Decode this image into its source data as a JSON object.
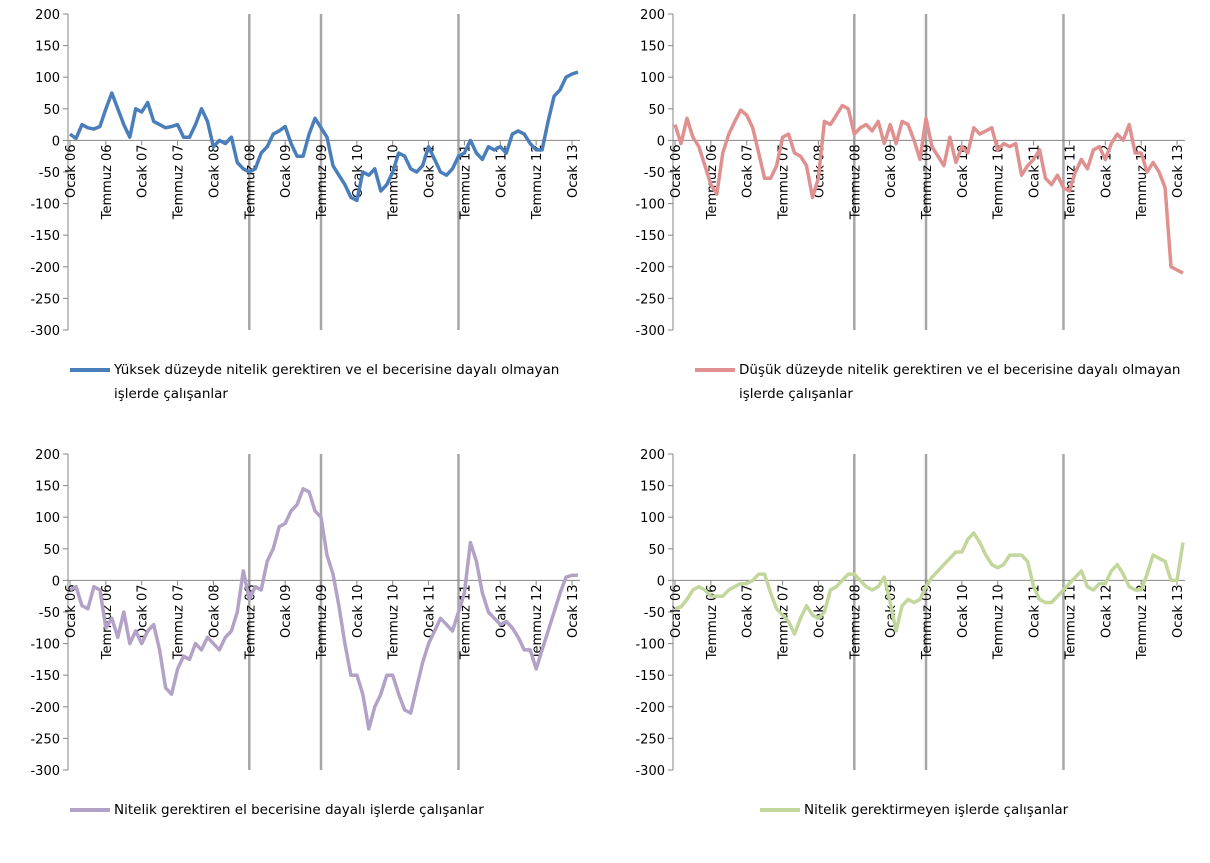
{
  "chart_data": [
    {
      "type": "line",
      "categories": [
        "Ocak 06",
        null,
        null,
        null,
        null,
        null,
        "Temmuz 06",
        null,
        null,
        null,
        null,
        null,
        "Ocak 07",
        null,
        null,
        null,
        null,
        null,
        "Temmuz 07",
        null,
        null,
        null,
        null,
        null,
        "Ocak 08",
        null,
        null,
        null,
        null,
        null,
        "Temmuz 08",
        null,
        null,
        null,
        null,
        null,
        "Ocak 09",
        null,
        null,
        null,
        null,
        null,
        "Temmuz 09",
        null,
        null,
        null,
        null,
        null,
        "Ocak 10",
        null,
        null,
        null,
        null,
        null,
        "Temmuz 10",
        null,
        null,
        null,
        null,
        null,
        "Ocak 11",
        null,
        null,
        null,
        null,
        null,
        "Temmuz 11",
        null,
        null,
        null,
        null,
        null,
        "Ocak 12",
        null,
        null,
        null,
        null,
        null,
        "Temmuz 12",
        null,
        null,
        null,
        null,
        null,
        "Ocak 13",
        null
      ],
      "series": [
        {
          "name": "Yüksek düzeyde nitelik gerektiren ve el becerisine dayalı olmayan işlerde çalışanlar",
          "color": "#4a7ebb",
          "values": [
            10,
            3,
            25,
            20,
            18,
            22,
            50,
            75,
            50,
            25,
            5,
            50,
            45,
            60,
            30,
            25,
            20,
            22,
            25,
            5,
            5,
            25,
            50,
            30,
            -10,
            0,
            -5,
            5,
            -35,
            -45,
            -50,
            -45,
            -20,
            -10,
            10,
            15,
            22,
            -5,
            -25,
            -25,
            10,
            35,
            20,
            5,
            -40,
            -55,
            -70,
            -90,
            -95,
            -50,
            -55,
            -45,
            -80,
            -70,
            -50,
            -20,
            -25,
            -45,
            -50,
            -40,
            -10,
            -30,
            -50,
            -55,
            -45,
            -25,
            -20,
            0,
            -20,
            -30,
            -10,
            -15,
            -10,
            -20,
            10,
            15,
            10,
            -5,
            -15,
            -15,
            30,
            70,
            80,
            100,
            105,
            108
          ]
        }
      ],
      "ylim": [
        -300,
        200
      ],
      "yticks": [
        -300,
        -250,
        -200,
        -150,
        -100,
        -50,
        0,
        50,
        100,
        150,
        200
      ],
      "reference_lines": [
        30,
        42,
        65
      ]
    },
    {
      "type": "line",
      "categories": [
        "Ocak 06",
        null,
        null,
        null,
        null,
        null,
        "Temmuz 06",
        null,
        null,
        null,
        null,
        null,
        "Ocak 07",
        null,
        null,
        null,
        null,
        null,
        "Temmuz 07",
        null,
        null,
        null,
        null,
        null,
        "Ocak 08",
        null,
        null,
        null,
        null,
        null,
        "Temmuz 08",
        null,
        null,
        null,
        null,
        null,
        "Ocak 09",
        null,
        null,
        null,
        null,
        null,
        "Temmuz 09",
        null,
        null,
        null,
        null,
        null,
        "Ocak 10",
        null,
        null,
        null,
        null,
        null,
        "Temmuz 10",
        null,
        null,
        null,
        null,
        null,
        "Ocak 11",
        null,
        null,
        null,
        null,
        null,
        "Temmuz 11",
        null,
        null,
        null,
        null,
        null,
        "Ocak 12",
        null,
        null,
        null,
        null,
        null,
        "Temmuz 12",
        null,
        null,
        null,
        null,
        null,
        "Ocak 13",
        null
      ],
      "series": [
        {
          "name": "Düşük düzeyde nitelik gerektiren ve el becerisine dayalı olmayan işlerde çalışanlar",
          "color": "#e0908f",
          "values": [
            25,
            -5,
            35,
            5,
            -10,
            -40,
            -70,
            -85,
            -20,
            10,
            30,
            48,
            40,
            20,
            -20,
            -60,
            -60,
            -40,
            5,
            10,
            -20,
            -25,
            -40,
            -90,
            -60,
            30,
            25,
            40,
            55,
            50,
            10,
            20,
            25,
            15,
            30,
            -5,
            25,
            -5,
            30,
            25,
            0,
            -30,
            35,
            -10,
            -25,
            -40,
            5,
            -35,
            -10,
            -20,
            20,
            10,
            15,
            20,
            -15,
            -5,
            -10,
            -5,
            -55,
            -40,
            -30,
            -15,
            -60,
            -70,
            -55,
            -75,
            -80,
            -50,
            -30,
            -45,
            -15,
            -10,
            -30,
            -5,
            10,
            0,
            25,
            -20,
            -20,
            -50,
            -35,
            -50,
            -75,
            -200,
            -205,
            -210
          ]
        }
      ],
      "ylim": [
        -300,
        200
      ],
      "yticks": [
        -300,
        -250,
        -200,
        -150,
        -100,
        -50,
        0,
        50,
        100,
        150,
        200
      ],
      "reference_lines": [
        30,
        42,
        65
      ]
    },
    {
      "type": "line",
      "categories": [
        "Ocak 06",
        null,
        null,
        null,
        null,
        null,
        "Temmuz 06",
        null,
        null,
        null,
        null,
        null,
        "Ocak 07",
        null,
        null,
        null,
        null,
        null,
        "Temmuz 07",
        null,
        null,
        null,
        null,
        null,
        "Ocak 08",
        null,
        null,
        null,
        null,
        null,
        "Temmuz 08",
        null,
        null,
        null,
        null,
        null,
        "Ocak 09",
        null,
        null,
        null,
        null,
        null,
        "Temmuz 09",
        null,
        null,
        null,
        null,
        null,
        "Ocak 10",
        null,
        null,
        null,
        null,
        null,
        "Temmuz 10",
        null,
        null,
        null,
        null,
        null,
        "Ocak 11",
        null,
        null,
        null,
        null,
        null,
        "Temmuz 11",
        null,
        null,
        null,
        null,
        null,
        "Ocak 12",
        null,
        null,
        null,
        null,
        null,
        "Temmuz 12",
        null,
        null,
        null,
        null,
        null,
        "Ocak 13",
        null
      ],
      "series": [
        {
          "name": "Nitelik gerektiren el becerisine dayalı işlerde çalışanlar",
          "color": "#b3a2c7",
          "values": [
            -15,
            -10,
            -40,
            -45,
            -10,
            -15,
            -75,
            -60,
            -90,
            -50,
            -100,
            -80,
            -100,
            -80,
            -70,
            -110,
            -170,
            -180,
            -140,
            -120,
            -125,
            -100,
            -110,
            -90,
            -100,
            -110,
            -90,
            -80,
            -50,
            15,
            -30,
            -10,
            -15,
            30,
            50,
            85,
            90,
            110,
            120,
            145,
            140,
            110,
            100,
            40,
            10,
            -40,
            -100,
            -150,
            -150,
            -180,
            -235,
            -200,
            -180,
            -150,
            -150,
            -180,
            -205,
            -210,
            -170,
            -130,
            -100,
            -80,
            -60,
            -70,
            -80,
            -50,
            -20,
            60,
            30,
            -20,
            -50,
            -60,
            -70,
            -65,
            -75,
            -90,
            -110,
            -110,
            -140,
            -110,
            -80,
            -50,
            -20,
            5,
            8,
            8
          ]
        }
      ],
      "ylim": [
        -300,
        200
      ],
      "yticks": [
        -300,
        -250,
        -200,
        -150,
        -100,
        -50,
        0,
        50,
        100,
        150,
        200
      ],
      "reference_lines": [
        30,
        42,
        65
      ]
    },
    {
      "type": "line",
      "categories": [
        "Ocak 06",
        null,
        null,
        null,
        null,
        null,
        "Temmuz 06",
        null,
        null,
        null,
        null,
        null,
        "Ocak 07",
        null,
        null,
        null,
        null,
        null,
        "Temmuz 07",
        null,
        null,
        null,
        null,
        null,
        "Ocak 08",
        null,
        null,
        null,
        null,
        null,
        "Temmuz 08",
        null,
        null,
        null,
        null,
        null,
        "Ocak 09",
        null,
        null,
        null,
        null,
        null,
        "Temmuz 09",
        null,
        null,
        null,
        null,
        null,
        "Ocak 10",
        null,
        null,
        null,
        null,
        null,
        "Temmuz 10",
        null,
        null,
        null,
        null,
        null,
        "Ocak 11",
        null,
        null,
        null,
        null,
        null,
        "Temmuz 11",
        null,
        null,
        null,
        null,
        null,
        "Ocak 12",
        null,
        null,
        null,
        null,
        null,
        "Temmuz 12",
        null,
        null,
        null,
        null,
        null,
        "Ocak 13",
        null
      ],
      "series": [
        {
          "name": "Nitelik gerektirmeyen işlerde çalışanlar",
          "color": "#c3d69b",
          "values": [
            -45,
            -42,
            -30,
            -15,
            -10,
            -15,
            -25,
            -25,
            -25,
            -15,
            -10,
            -5,
            -5,
            0,
            10,
            10,
            -20,
            -45,
            -55,
            -65,
            -85,
            -60,
            -40,
            -55,
            -60,
            -50,
            -15,
            -10,
            0,
            10,
            10,
            0,
            -10,
            -15,
            -10,
            5,
            -35,
            -80,
            -40,
            -30,
            -35,
            -30,
            -10,
            5,
            15,
            25,
            35,
            45,
            45,
            65,
            75,
            60,
            40,
            25,
            20,
            25,
            40,
            40,
            40,
            30,
            -10,
            -30,
            -35,
            -35,
            -25,
            -15,
            -5,
            5,
            15,
            -10,
            -15,
            -5,
            -5,
            15,
            25,
            10,
            -10,
            -15,
            -15,
            10,
            40,
            35,
            30,
            0,
            0,
            60
          ]
        }
      ],
      "ylim": [
        -300,
        200
      ],
      "yticks": [
        -300,
        -250,
        -200,
        -150,
        -100,
        -50,
        0,
        50,
        100,
        150,
        200
      ],
      "reference_lines": [
        30,
        42,
        65
      ]
    }
  ]
}
